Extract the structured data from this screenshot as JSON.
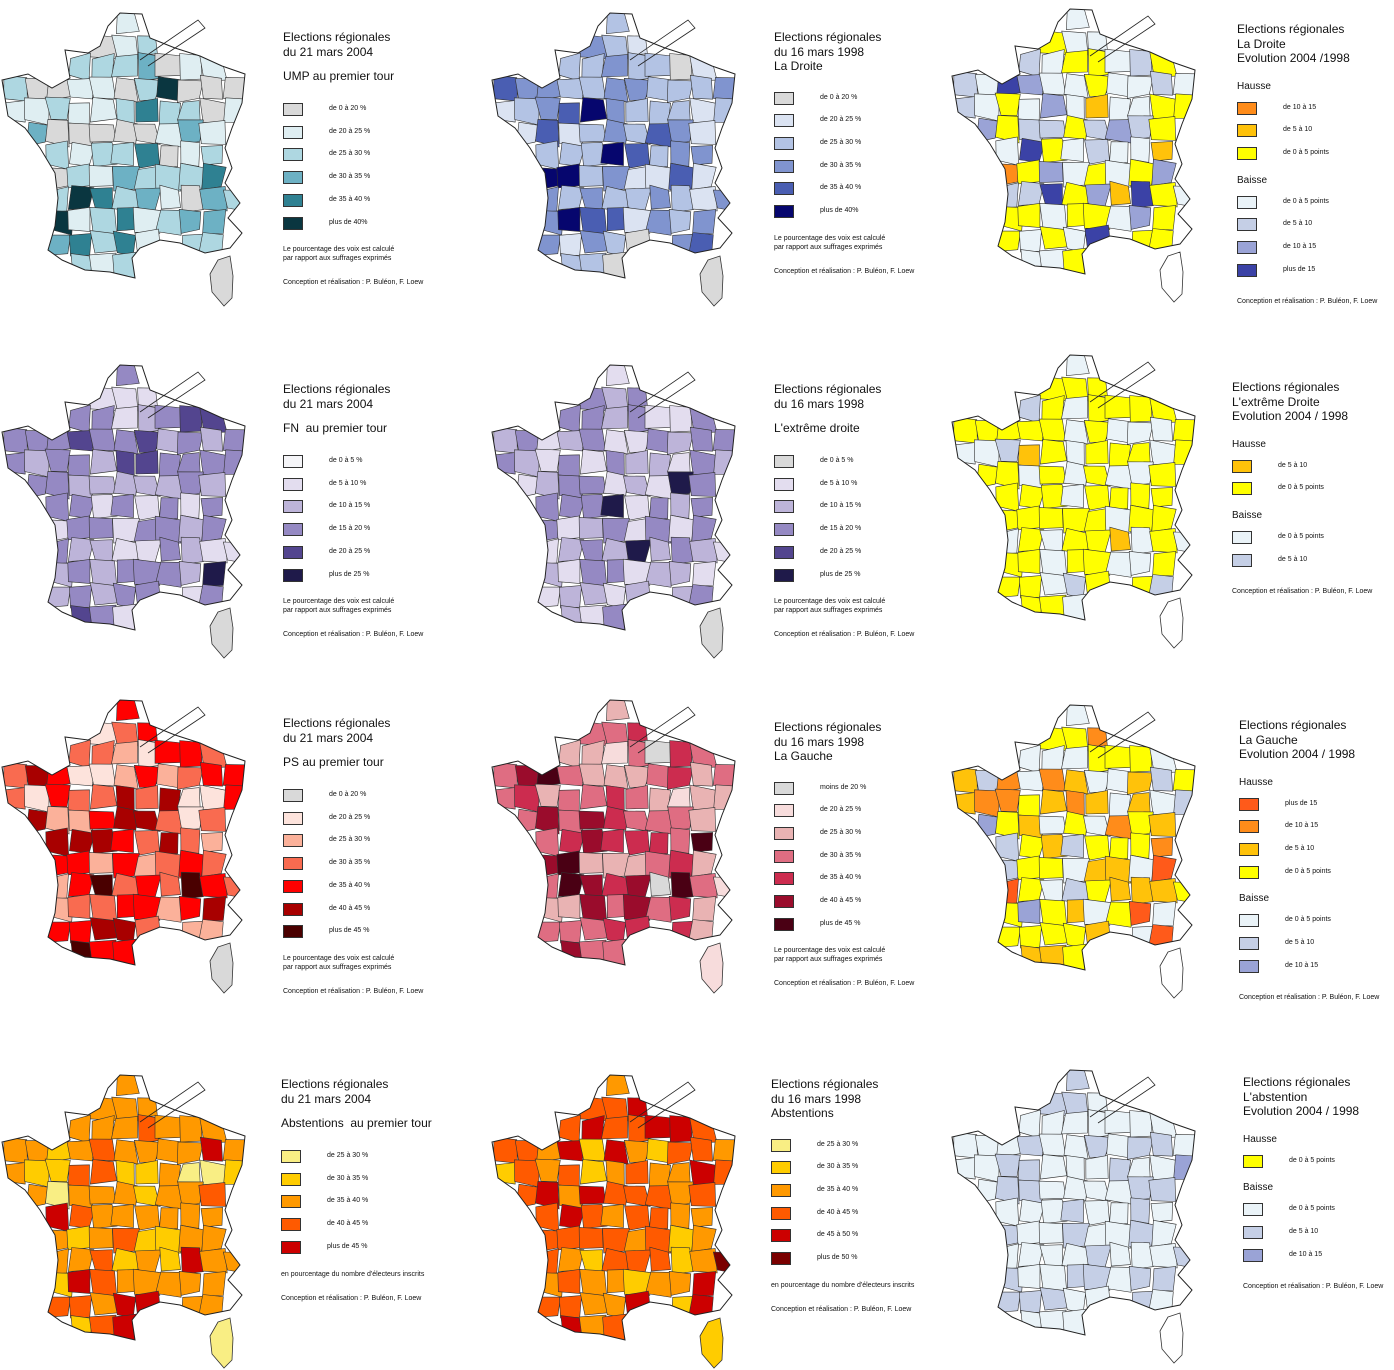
{
  "panels": [
    {
      "id": "ump2004",
      "title_lines": [
        "Elections régionales",
        "du 21 mars 2004"
      ],
      "subtitle": "UMP au premier tour",
      "legend": [
        {
          "label": "de 0 à 20 %",
          "color": "#d9d9d9"
        },
        {
          "label": "de 20 à 25 %",
          "color": "#dfeef2"
        },
        {
          "label": "de 25 à 30 %",
          "color": "#aed7e1"
        },
        {
          "label": "de 30 à 35 %",
          "color": "#6db1c4"
        },
        {
          "label": "de 35 à 40 %",
          "color": "#2f8192"
        },
        {
          "label": "plus de 40%",
          "color": "#0a3640"
        }
      ],
      "note": [
        "Le pourcentage des voix est calculé",
        "par rapport aux suffrages exprimés"
      ],
      "credit": "Conception et réalisation : P. Buléon, F. Loew",
      "map_palette": [
        "#d9d9d9",
        "#dfeef2",
        "#aed7e1",
        "#6db1c4",
        "#2f8192",
        "#0a3640"
      ],
      "map_weights": [
        0.18,
        0.28,
        0.3,
        0.16,
        0.06,
        0.02
      ],
      "corsica_color": "#d9d9d9"
    },
    {
      "id": "droite1998",
      "title_lines": [
        "Elections régionales",
        "du 16 mars 1998",
        "La Droite"
      ],
      "subtitle": "",
      "legend": [
        {
          "label": "de 0 à 20 %",
          "color": "#d9d9d9"
        },
        {
          "label": "de 20 à 25 %",
          "color": "#dbe3f2"
        },
        {
          "label": "de 25 à 30 %",
          "color": "#b3c3e4"
        },
        {
          "label": "de 30 à 35 %",
          "color": "#8094cf"
        },
        {
          "label": "de 35 à 40 %",
          "color": "#4a5eb2"
        },
        {
          "label": "plus de 40%",
          "color": "#06066e"
        }
      ],
      "note": [
        "Le pourcentage des voix est calculé",
        "par rapport aux suffrages exprimés"
      ],
      "credit": "Conception et réalisation : P. Buléon, F. Loew",
      "map_palette": [
        "#d9d9d9",
        "#dbe3f2",
        "#b3c3e4",
        "#8094cf",
        "#4a5eb2",
        "#06066e"
      ],
      "map_weights": [
        0.03,
        0.18,
        0.3,
        0.3,
        0.12,
        0.07
      ],
      "corsica_color": "#d9d9d9"
    },
    {
      "id": "droite_evol",
      "title_lines": [
        "Elections régionales",
        "La Droite",
        "Evolution 2004 /1998"
      ],
      "subtitle": "",
      "groups": [
        {
          "name": "Hausse",
          "items": [
            {
              "label": "de 10 à 15",
              "color": "#ff8c1a"
            },
            {
              "label": "de 5 à 10",
              "color": "#ffc20a"
            },
            {
              "label": "de 0 à 5 points",
              "color": "#ffff00"
            }
          ]
        },
        {
          "name": "Baisse",
          "items": [
            {
              "label": "de 0 à 5 points",
              "color": "#eaf3f8"
            },
            {
              "label": "de 5 à 10",
              "color": "#c5cfe6"
            },
            {
              "label": "de 10 à 15",
              "color": "#9aa3d6"
            },
            {
              "label": "plus de 15",
              "color": "#3b42a6"
            }
          ]
        }
      ],
      "credit": "Conception et réalisation : P. Buléon, F. Loew",
      "map_palette": [
        "#ff8c1a",
        "#ffc20a",
        "#ffff00",
        "#eaf3f8",
        "#c5cfe6",
        "#9aa3d6",
        "#3b42a6"
      ],
      "map_weights": [
        0.01,
        0.05,
        0.3,
        0.3,
        0.2,
        0.1,
        0.04
      ],
      "corsica_color": "#ffffff"
    },
    {
      "id": "fn2004",
      "title_lines": [
        "Elections régionales",
        "du 21 mars 2004"
      ],
      "subtitle": "FN  au premier tour",
      "legend": [
        {
          "label": "de 0 à 5 %",
          "color": "#f5f5f8"
        },
        {
          "label": "de 5 à 10 %",
          "color": "#e3ddef"
        },
        {
          "label": "de 10 à 15 %",
          "color": "#bdb4d9"
        },
        {
          "label": "de 15 à 20 %",
          "color": "#9589c3"
        },
        {
          "label": "de 20 à 25 %",
          "color": "#53458f"
        },
        {
          "label": "plus de 25 %",
          "color": "#1f1a4a"
        }
      ],
      "note": [
        "Le pourcentage des voix est calculé",
        "par rapport aux suffrages exprimés"
      ],
      "credit": "Conception et réalisation : P. Buléon, F. Loew",
      "map_palette": [
        "#f5f5f8",
        "#e3ddef",
        "#bdb4d9",
        "#9589c3",
        "#53458f",
        "#1f1a4a"
      ],
      "map_weights": [
        0.0,
        0.25,
        0.3,
        0.35,
        0.08,
        0.02
      ],
      "corsica_color": "#d9d9d9"
    },
    {
      "id": "ed1998",
      "title_lines": [
        "Elections régionales",
        "du 16 mars 1998"
      ],
      "subtitle": "L'extrême droite",
      "legend": [
        {
          "label": "de 0 à 5 %",
          "color": "#d9d9d9"
        },
        {
          "label": "de 5 à 10 %",
          "color": "#e3ddef"
        },
        {
          "label": "de 10 à 15 %",
          "color": "#bdb4d9"
        },
        {
          "label": "de 15 à 20 %",
          "color": "#9589c3"
        },
        {
          "label": "de 20 à 25 %",
          "color": "#53458f"
        },
        {
          "label": "plus de 25 %",
          "color": "#1f1a4a"
        }
      ],
      "note": [
        "Le pourcentage des voix est calculé",
        "par rapport aux suffrages exprimés"
      ],
      "credit": "Conception et réalisation : P. Buléon, F. Loew",
      "map_palette": [
        "#d9d9d9",
        "#e3ddef",
        "#bdb4d9",
        "#9589c3",
        "#53458f",
        "#1f1a4a"
      ],
      "map_weights": [
        0.0,
        0.22,
        0.3,
        0.38,
        0.08,
        0.02
      ],
      "corsica_color": "#d9d9d9"
    },
    {
      "id": "ed_evol",
      "title_lines": [
        "Elections régionales",
        "L'extrême Droite",
        "Evolution 2004 / 1998"
      ],
      "subtitle": "",
      "groups": [
        {
          "name": "Hausse",
          "items": [
            {
              "label": "de 5 à 10",
              "color": "#ffc20a"
            },
            {
              "label": "de 0 à 5 points",
              "color": "#ffff00"
            }
          ]
        },
        {
          "name": "Baisse",
          "items": [
            {
              "label": "de 0 à 5 points",
              "color": "#eaf3f8"
            },
            {
              "label": "de 5 à 10",
              "color": "#c5cfe6"
            }
          ]
        }
      ],
      "credit": "Conception et réalisation : P. Buléon, F. Loew",
      "map_palette": [
        "#ffc20a",
        "#ffff00",
        "#eaf3f8",
        "#c5cfe6"
      ],
      "map_weights": [
        0.02,
        0.72,
        0.24,
        0.02
      ],
      "corsica_color": "#ffffff"
    },
    {
      "id": "ps2004",
      "title_lines": [
        "Elections régionales",
        "du 21 mars 2004"
      ],
      "subtitle": "PS au premier tour",
      "legend": [
        {
          "label": "de 0 à 20 %",
          "color": "#d9d9d9"
        },
        {
          "label": "de 20 à 25 %",
          "color": "#fde3dc"
        },
        {
          "label": "de 25 à 30 %",
          "color": "#fbb19a"
        },
        {
          "label": "de 30 à 35 %",
          "color": "#f96b50"
        },
        {
          "label": "de 35 à 40 %",
          "color": "#ff0000"
        },
        {
          "label": "de 40 à 45 %",
          "color": "#a80000"
        },
        {
          "label": "plus de 45 %",
          "color": "#4a0000"
        }
      ],
      "note": [
        "Le pourcentage des voix est calculé",
        "par rapport aux suffrages exprimés"
      ],
      "credit": "Conception et réalisation : P. Buléon, F. Loew",
      "map_palette": [
        "#d9d9d9",
        "#fde3dc",
        "#fbb19a",
        "#f96b50",
        "#ff0000",
        "#a80000",
        "#4a0000"
      ],
      "map_weights": [
        0.0,
        0.06,
        0.12,
        0.3,
        0.3,
        0.17,
        0.05
      ],
      "corsica_color": "#d9d9d9"
    },
    {
      "id": "gauche1998",
      "title_lines": [
        "Elections régionales",
        "du 16 mars 1998",
        "La Gauche"
      ],
      "subtitle": "",
      "legend": [
        {
          "label": "moins de 20 %",
          "color": "#d9d9d9"
        },
        {
          "label": "de 20 à 25 %",
          "color": "#f7dcdc"
        },
        {
          "label": "de 25 à 30 %",
          "color": "#e9b3b3"
        },
        {
          "label": "de 30 à 35 %",
          "color": "#df6d82"
        },
        {
          "label": "de 35 à 40 %",
          "color": "#cc2c4f"
        },
        {
          "label": "de 40 à 45 %",
          "color": "#9a0c2c"
        },
        {
          "label": "plus de 45 %",
          "color": "#4a0014"
        }
      ],
      "note": [
        "Le pourcentage des voix est calculé",
        "par rapport aux suffrages exprimés"
      ],
      "credit": "Conception et réalisation : P. Buléon, F. Loew",
      "map_palette": [
        "#d9d9d9",
        "#f7dcdc",
        "#e9b3b3",
        "#df6d82",
        "#cc2c4f",
        "#9a0c2c",
        "#4a0014"
      ],
      "map_weights": [
        0.05,
        0.05,
        0.2,
        0.35,
        0.2,
        0.13,
        0.02
      ],
      "corsica_color": "#f7dcdc"
    },
    {
      "id": "gauche_evol",
      "title_lines": [
        "Elections régionales",
        "La Gauche",
        "Evolution 2004 / 1998"
      ],
      "subtitle": "",
      "groups": [
        {
          "name": "Hausse",
          "items": [
            {
              "label": "plus de 15",
              "color": "#ff5a1a"
            },
            {
              "label": "de 10 à 15",
              "color": "#ff8c1a"
            },
            {
              "label": "de 5 à 10",
              "color": "#ffc20a"
            },
            {
              "label": "de 0 à 5 points",
              "color": "#ffff00"
            }
          ]
        },
        {
          "name": "Baisse",
          "items": [
            {
              "label": "de 0 à 5 points",
              "color": "#eaf3f8"
            },
            {
              "label": "de 5 à 10",
              "color": "#c5cfe6"
            },
            {
              "label": "de 10 à 15",
              "color": "#9aa3d6"
            }
          ]
        }
      ],
      "credit": "Conception et réalisation : P. Buléon, F. Loew",
      "map_palette": [
        "#ff5a1a",
        "#ff8c1a",
        "#ffc20a",
        "#ffff00",
        "#eaf3f8",
        "#c5cfe6",
        "#9aa3d6"
      ],
      "map_weights": [
        0.02,
        0.08,
        0.18,
        0.32,
        0.3,
        0.08,
        0.02
      ],
      "corsica_color": "#ffffff"
    },
    {
      "id": "abst2004",
      "title_lines": [
        "Elections régionales",
        "du 21 mars 2004"
      ],
      "subtitle": "Abstentions  au premier tour",
      "legend": [
        {
          "label": "de 25 à 30 %",
          "color": "#f9ee84"
        },
        {
          "label": "de 30 à 35 %",
          "color": "#ffcc00"
        },
        {
          "label": "de 35 à 40 %",
          "color": "#ff9900"
        },
        {
          "label": "de 40 à 45 %",
          "color": "#ff5a00"
        },
        {
          "label": "plus de 45 %",
          "color": "#cc0000"
        }
      ],
      "note": [
        "en pourcentage du nombre d'électeurs inscrits"
      ],
      "credit": "Conception et réalisation : P. Buléon, F. Loew",
      "map_palette": [
        "#f9ee84",
        "#ffcc00",
        "#ff9900",
        "#ff5a00",
        "#cc0000"
      ],
      "map_weights": [
        0.04,
        0.2,
        0.58,
        0.13,
        0.05
      ],
      "corsica_color": "#f9ee84"
    },
    {
      "id": "abst1998",
      "title_lines": [
        "Elections régionales",
        "du 16 mars 1998",
        "Abstentions"
      ],
      "subtitle": "",
      "legend": [
        {
          "label": "de 25 à 30 %",
          "color": "#f9ee84"
        },
        {
          "label": "de 30 à 35 %",
          "color": "#ffcc00"
        },
        {
          "label": "de 35 à 40 %",
          "color": "#ff9900"
        },
        {
          "label": "de 40 à 45 %",
          "color": "#ff5a00"
        },
        {
          "label": "de 45 à 50 %",
          "color": "#cc0000"
        },
        {
          "label": "plus de 50 %",
          "color": "#7a0000"
        }
      ],
      "note": [
        "en pourcentage du nombre d'électeurs inscrits"
      ],
      "credit": "Conception et réalisation : P. Buléon, F. Loew",
      "map_palette": [
        "#f9ee84",
        "#ffcc00",
        "#ff9900",
        "#ff5a00",
        "#cc0000",
        "#7a0000"
      ],
      "map_weights": [
        0.0,
        0.22,
        0.33,
        0.33,
        0.1,
        0.02
      ],
      "corsica_color": "#ffcc00"
    },
    {
      "id": "abst_evol",
      "title_lines": [
        "Elections régionales",
        "L'abstention",
        "Evolution 2004 / 1998"
      ],
      "subtitle": "",
      "groups": [
        {
          "name": "Hausse",
          "items": [
            {
              "label": "de 0 à 5 points",
              "color": "#ffff00"
            }
          ]
        },
        {
          "name": "Baisse",
          "items": [
            {
              "label": "de 0 à 5 points",
              "color": "#eaf3f8"
            },
            {
              "label": "de 5 à 10",
              "color": "#c5cfe6"
            },
            {
              "label": "de 10 à 15",
              "color": "#9aa3d6"
            }
          ]
        }
      ],
      "credit": "Conception et réalisation : P. Buléon, F. Loew",
      "map_palette": [
        "#ffff00",
        "#eaf3f8",
        "#c5cfe6",
        "#9aa3d6"
      ],
      "map_weights": [
        0.02,
        0.62,
        0.34,
        0.02
      ],
      "corsica_color": "#ffffff"
    }
  ]
}
